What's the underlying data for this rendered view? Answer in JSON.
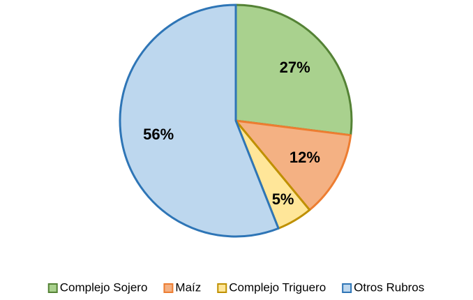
{
  "chart_data": {
    "type": "pie",
    "categories": [
      "Complejo Sojero",
      "Maíz",
      "Complejo Triguero",
      "Otros Rubros"
    ],
    "values": [
      27,
      12,
      5,
      56
    ],
    "value_labels": [
      "27%",
      "12%",
      "5%",
      "56%"
    ],
    "colors": [
      "#a9d18e",
      "#f4b183",
      "#ffe699",
      "#bdd7ee"
    ],
    "edge_colors": [
      "#548235",
      "#ed7d31",
      "#bf9000",
      "#2e75b6"
    ],
    "legend": "bottom"
  }
}
